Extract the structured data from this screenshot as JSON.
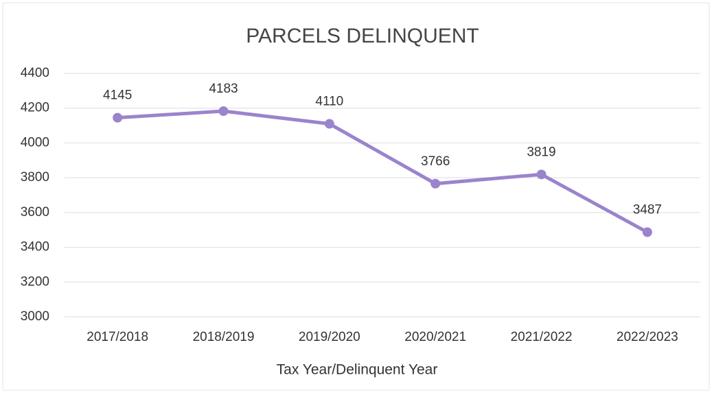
{
  "chart_data": {
    "type": "line",
    "title": "PARCELS DELINQUENT",
    "x_label": "Tax Year/Delinquent Year",
    "categories": [
      "2017/2018",
      "2018/2019",
      "2019/2020",
      "2020/2021",
      "2021/2022",
      "2022/2023"
    ],
    "series": [
      {
        "name": "Parcels Delinquent",
        "color": "#9a84cc",
        "values": [
          4145,
          4183,
          4110,
          3766,
          3819,
          3487
        ]
      }
    ],
    "ylim": [
      3000,
      4400
    ],
    "yticks": [
      3000,
      3200,
      3400,
      3600,
      3800,
      4000,
      4200,
      4400
    ],
    "grid": true
  }
}
